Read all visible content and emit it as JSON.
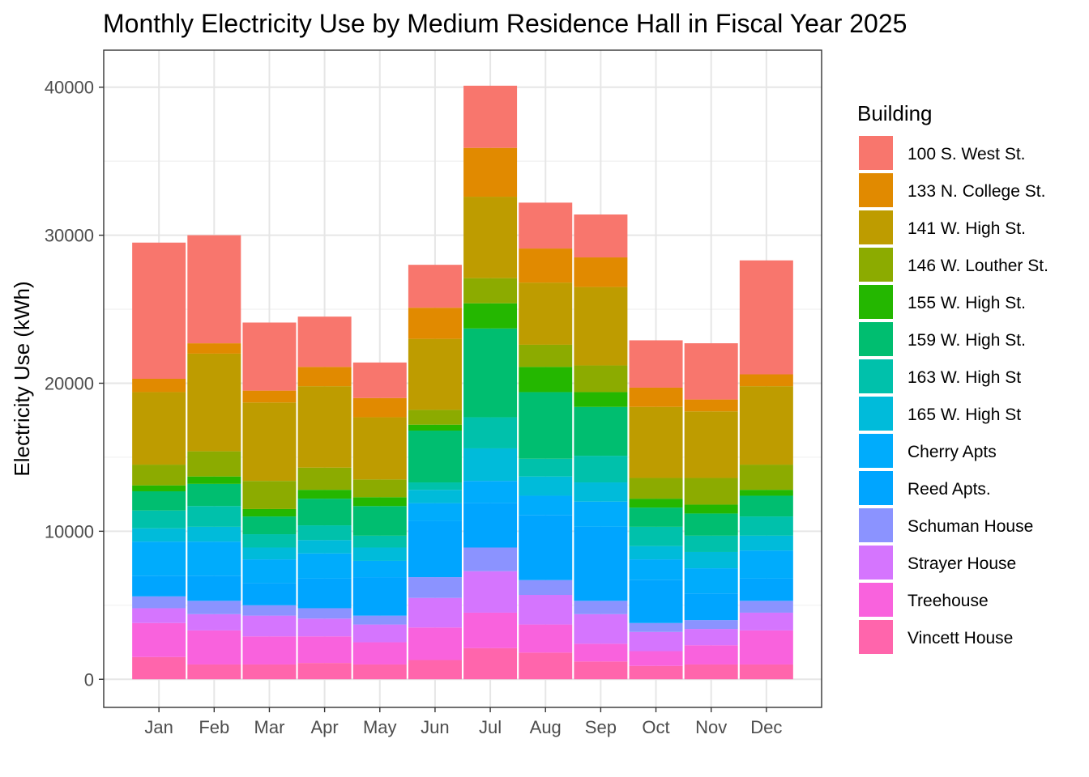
{
  "chart_data": {
    "type": "bar",
    "stacked": true,
    "title": "Monthly Electricity Use by Medium Residence Hall in Fiscal Year 2025",
    "xlabel": "",
    "ylabel": "Electricity Use (kWh)",
    "ylim": [
      -1900,
      42500
    ],
    "yticks": [
      0,
      10000,
      20000,
      30000,
      40000
    ],
    "grid": true,
    "legend": {
      "title": "Building",
      "position": "right"
    },
    "categories": [
      "Jan",
      "Feb",
      "Mar",
      "Apr",
      "May",
      "Jun",
      "Jul",
      "Aug",
      "Sep",
      "Oct",
      "Nov",
      "Dec"
    ],
    "series": [
      {
        "name": "100 S. West St.",
        "color": "#F8766D",
        "values": [
          9200,
          7300,
          4600,
          3400,
          2400,
          2900,
          4200,
          3100,
          2900,
          3200,
          3800,
          7700
        ]
      },
      {
        "name": "133 N. College St.",
        "color": "#E18A00",
        "values": [
          900,
          700,
          800,
          1300,
          1300,
          2100,
          3300,
          2300,
          2000,
          1300,
          800,
          800
        ]
      },
      {
        "name": "141 W. High St.",
        "color": "#BE9C00",
        "values": [
          4900,
          6600,
          5300,
          5500,
          4200,
          4800,
          5500,
          4200,
          5300,
          4800,
          4500,
          5300
        ]
      },
      {
        "name": "146 W. Louther St.",
        "color": "#8CAB00",
        "values": [
          1400,
          1700,
          1900,
          1500,
          1200,
          1000,
          1700,
          1500,
          1800,
          1400,
          1800,
          1700
        ]
      },
      {
        "name": "155 W. High St.",
        "color": "#24B700",
        "values": [
          400,
          500,
          500,
          600,
          600,
          400,
          1700,
          1700,
          1000,
          600,
          600,
          400
        ]
      },
      {
        "name": "159 W. High St.",
        "color": "#00BE70",
        "values": [
          1300,
          1500,
          1200,
          1800,
          2000,
          3500,
          6000,
          4500,
          3300,
          1300,
          1500,
          1400
        ]
      },
      {
        "name": "163 W. High St",
        "color": "#00C1AB",
        "values": [
          1200,
          1400,
          900,
          1000,
          800,
          500,
          2100,
          1200,
          1800,
          1300,
          1100,
          1300
        ]
      },
      {
        "name": "165 W. High St",
        "color": "#00BBDA",
        "values": [
          900,
          1000,
          800,
          900,
          900,
          900,
          2200,
          1300,
          1300,
          900,
          1100,
          1000
        ]
      },
      {
        "name": "Cherry Apts",
        "color": "#00ACFC",
        "values": [
          2300,
          2300,
          1600,
          1700,
          1100,
          1200,
          1500,
          1300,
          1700,
          1400,
          1700,
          1900
        ]
      },
      {
        "name": "Reed Apts.",
        "color": "#00A5FF",
        "values": [
          1400,
          1700,
          1500,
          2000,
          2600,
          3800,
          3000,
          4400,
          5000,
          2900,
          1800,
          1500
        ]
      },
      {
        "name": "Schuman House",
        "color": "#8B93FF",
        "values": [
          800,
          900,
          700,
          700,
          600,
          1400,
          1600,
          1000,
          900,
          600,
          600,
          800
        ]
      },
      {
        "name": "Strayer House",
        "color": "#D575FE",
        "values": [
          1000,
          1100,
          1400,
          1200,
          1200,
          2000,
          2800,
          2000,
          2000,
          1300,
          1100,
          1200
        ]
      },
      {
        "name": "Treehouse",
        "color": "#F962DD",
        "values": [
          2300,
          2300,
          1900,
          1800,
          1500,
          2200,
          2400,
          1900,
          1200,
          1000,
          1300,
          2300
        ]
      },
      {
        "name": "Vincett House",
        "color": "#FF65AC",
        "values": [
          1500,
          1000,
          1000,
          1100,
          1000,
          1300,
          2100,
          1800,
          1200,
          900,
          1000,
          1000
        ]
      }
    ]
  }
}
